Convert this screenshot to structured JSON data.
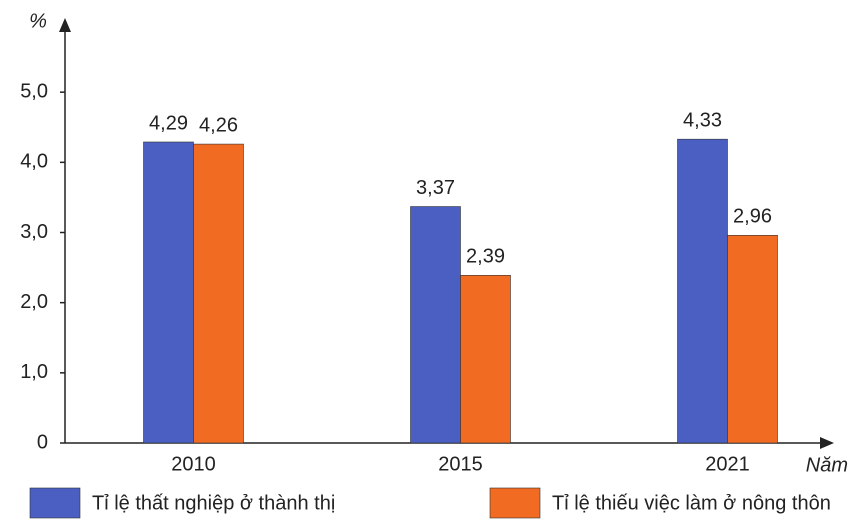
{
  "chart_data": {
    "type": "bar",
    "y_label": "%",
    "x_label": "Năm",
    "categories": [
      "2010",
      "2015",
      "2021"
    ],
    "series": [
      {
        "name": "Tỉ lệ thất nghiệp ở thành thị",
        "color": "#4a5fc1",
        "values": [
          4.29,
          3.37,
          4.33
        ],
        "value_labels": [
          "4,29",
          "3,37",
          "4,33"
        ]
      },
      {
        "name": "Tỉ lệ thiếu việc làm ở nông thôn",
        "color": "#f26b22",
        "values": [
          4.26,
          2.39,
          2.96
        ],
        "value_labels": [
          "4,26",
          "2,39",
          "2,96"
        ]
      }
    ],
    "ylim": [
      0,
      6
    ],
    "yticks": [
      0,
      {
        "value": 1,
        "label": "1,0"
      },
      {
        "value": 2,
        "label": "2,0"
      },
      {
        "value": 3,
        "label": "3,0"
      },
      {
        "value": 4,
        "label": "4,0"
      },
      {
        "value": 5,
        "label": "5,0"
      }
    ],
    "grid": false,
    "legend": "bottom"
  }
}
